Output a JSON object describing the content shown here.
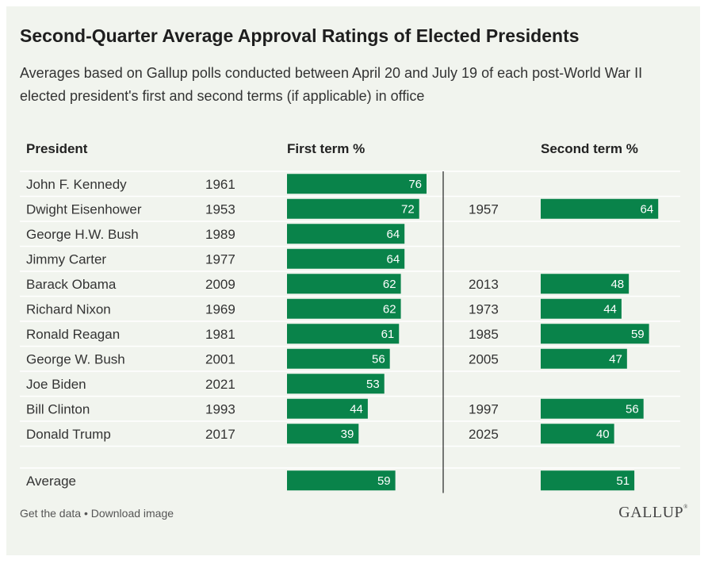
{
  "chart_data": {
    "type": "bar",
    "title": "Second-Quarter Average Approval Ratings of Elected Presidents",
    "subtitle": "Averages based on Gallup polls conducted between April 20 and July 19 of each post-World War II elected president's first and second terms (if applicable) in office",
    "column_headers": {
      "president": "President",
      "first_term": "First term %",
      "second_term": "Second term %"
    },
    "rows": [
      {
        "president": "John F. Kennedy",
        "first_year": "1961",
        "first_value": 76,
        "second_year": "",
        "second_value": null
      },
      {
        "president": "Dwight Eisenhower",
        "first_year": "1953",
        "first_value": 72,
        "second_year": "1957",
        "second_value": 64
      },
      {
        "president": "George H.W. Bush",
        "first_year": "1989",
        "first_value": 64,
        "second_year": "",
        "second_value": null
      },
      {
        "president": "Jimmy Carter",
        "first_year": "1977",
        "first_value": 64,
        "second_year": "",
        "second_value": null
      },
      {
        "president": "Barack Obama",
        "first_year": "2009",
        "first_value": 62,
        "second_year": "2013",
        "second_value": 48
      },
      {
        "president": "Richard Nixon",
        "first_year": "1969",
        "first_value": 62,
        "second_year": "1973",
        "second_value": 44
      },
      {
        "president": "Ronald Reagan",
        "first_year": "1981",
        "first_value": 61,
        "second_year": "1985",
        "second_value": 59
      },
      {
        "president": "George W. Bush",
        "first_year": "2001",
        "first_value": 56,
        "second_year": "2005",
        "second_value": 47
      },
      {
        "president": "Joe Biden",
        "first_year": "2021",
        "first_value": 53,
        "second_year": "",
        "second_value": null
      },
      {
        "president": "Bill Clinton",
        "first_year": "1993",
        "first_value": 44,
        "second_year": "1997",
        "second_value": 56
      },
      {
        "president": "Donald Trump",
        "first_year": "2017",
        "first_value": 39,
        "second_year": "2025",
        "second_value": 40
      }
    ],
    "average": {
      "label": "Average",
      "first_value": 59,
      "second_value": 51
    },
    "bar_color": "#09834a",
    "value_label_color": "#ffffff"
  },
  "footer": {
    "get_data": "Get the data",
    "separator": " • ",
    "download": "Download image"
  },
  "logo": {
    "text": "GALLUP",
    "mark": "®"
  }
}
